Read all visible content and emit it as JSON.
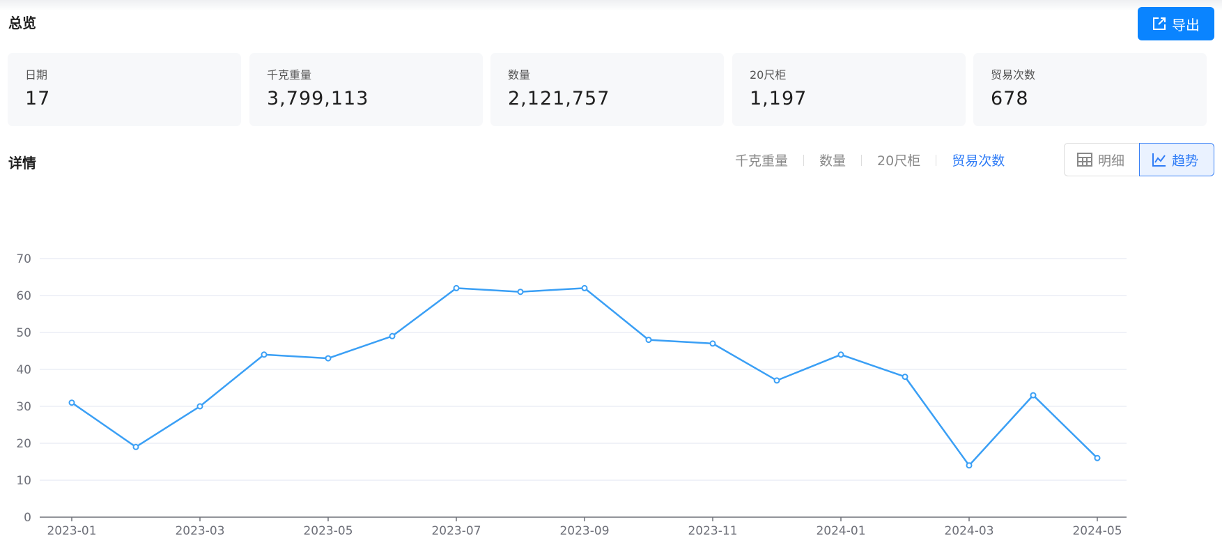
{
  "overview": {
    "title": "总览",
    "export_label": "导出",
    "export_icon": "external-link-icon"
  },
  "cards": [
    {
      "label": "日期",
      "value": "17"
    },
    {
      "label": "千克重量",
      "value": "3,799,113"
    },
    {
      "label": "数量",
      "value": "2,121,757"
    },
    {
      "label": "20尺柜",
      "value": "1,197"
    },
    {
      "label": "贸易次数",
      "value": "678"
    }
  ],
  "details": {
    "title": "详情",
    "tabs": [
      {
        "label": "千克重量"
      },
      {
        "label": "数量"
      },
      {
        "label": "20尺柜"
      },
      {
        "label": "贸易次数",
        "active": true
      }
    ],
    "view_toggle": [
      {
        "label": "明细",
        "icon": "table-icon"
      },
      {
        "label": "趋势",
        "icon": "line-chart-icon",
        "active": true
      }
    ]
  },
  "colors": {
    "accent": "#0a84ff",
    "line": "#3a9ff5",
    "active_tab": "#2f7cf6"
  },
  "chart_data": {
    "type": "line",
    "x": [
      "2023-01",
      "2023-02",
      "2023-03",
      "2023-04",
      "2023-05",
      "2023-06",
      "2023-07",
      "2023-08",
      "2023-09",
      "2023-10",
      "2023-11",
      "2023-12",
      "2024-01",
      "2024-02",
      "2024-03",
      "2024-04",
      "2024-05"
    ],
    "x_tick_labels": [
      "2023-01",
      "2023-03",
      "2023-05",
      "2023-07",
      "2023-09",
      "2023-11",
      "2024-01",
      "2024-03",
      "2024-05"
    ],
    "series": [
      {
        "values": [
          31,
          19,
          30,
          44,
          43,
          49,
          62,
          61,
          62,
          48,
          47,
          37,
          44,
          38,
          14,
          33,
          16
        ]
      }
    ],
    "y_ticks": [
      0,
      10,
      20,
      30,
      40,
      50,
      60,
      70
    ],
    "ylim": [
      0,
      70
    ],
    "grid": "horizontal",
    "legend": "none"
  }
}
